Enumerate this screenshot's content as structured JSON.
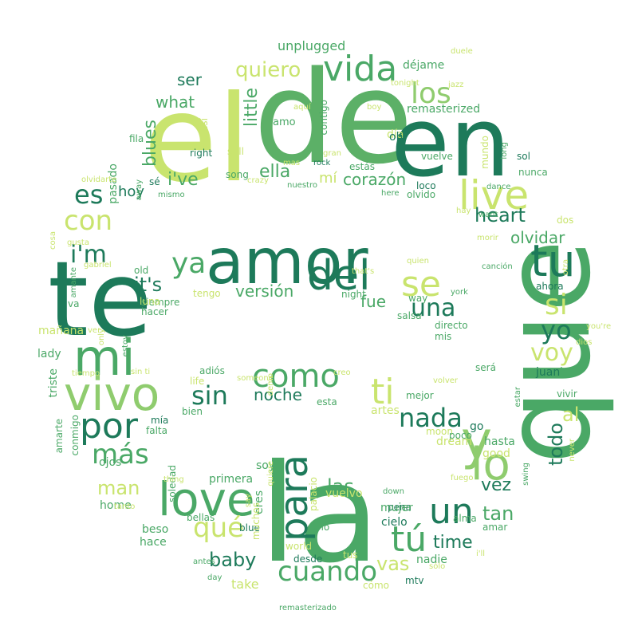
{
  "palette": {
    "dark_green": "#1d7a5a",
    "mid_green": "#4aa866",
    "light_green": "#8fcc6e",
    "yellow_green": "#c9e46e",
    "pale_yellow": "#e8f08c"
  },
  "words": [
    {
      "text": "el",
      "color": "#c9e46e"
    },
    {
      "text": "de",
      "color": "#5cb067"
    },
    {
      "text": "en",
      "color": "#1d7a5a"
    },
    {
      "text": "te",
      "color": "#1d7a5a"
    },
    {
      "text": "amor",
      "color": "#1d7a5a"
    },
    {
      "text": "que",
      "color": "#4aa866"
    },
    {
      "text": "la",
      "color": "#4aa866"
    },
    {
      "text": "mi",
      "color": "#4aa866"
    },
    {
      "text": "vivo",
      "color": "#8fcc6e"
    },
    {
      "text": "live",
      "color": "#c9e46e"
    },
    {
      "text": "tu",
      "color": "#1d7a5a"
    },
    {
      "text": "del",
      "color": "#1d7a5a"
    },
    {
      "text": "se",
      "color": "#c9e46e"
    },
    {
      "text": "vida",
      "color": "#4aa866"
    },
    {
      "text": "los",
      "color": "#8fcc6e"
    },
    {
      "text": "quiero",
      "color": "#c9e46e"
    },
    {
      "text": "ser",
      "color": "#1d7a5a"
    },
    {
      "text": "what",
      "color": "#4aa866"
    },
    {
      "text": "little",
      "color": "#4aa866"
    },
    {
      "text": "blues",
      "color": "#4aa866"
    },
    {
      "text": "i've",
      "color": "#4aa866"
    },
    {
      "text": "ella",
      "color": "#4aa866"
    },
    {
      "text": "mí",
      "color": "#c9e46e"
    },
    {
      "text": "corazón",
      "color": "#4aa866"
    },
    {
      "text": "es",
      "color": "#1d7a5a"
    },
    {
      "text": "hoy",
      "color": "#1d7a5a"
    },
    {
      "text": "con",
      "color": "#c9e46e"
    },
    {
      "text": "i'm",
      "color": "#1d7a5a"
    },
    {
      "text": "ya",
      "color": "#4aa866"
    },
    {
      "text": "it's",
      "color": "#1d7a5a"
    },
    {
      "text": "versión",
      "color": "#4aa866"
    },
    {
      "text": "heart",
      "color": "#1d7a5a"
    },
    {
      "text": "olvidar",
      "color": "#4aa866"
    },
    {
      "text": "si",
      "color": "#c9e46e"
    },
    {
      "text": "una",
      "color": "#1d7a5a"
    },
    {
      "text": "fue",
      "color": "#4aa866"
    },
    {
      "text": "yo",
      "color": "#1d7a5a"
    },
    {
      "text": "voy",
      "color": "#c9e46e"
    },
    {
      "text": "como",
      "color": "#4aa866"
    },
    {
      "text": "sin",
      "color": "#1d7a5a"
    },
    {
      "text": "noche",
      "color": "#1d7a5a"
    },
    {
      "text": "ti",
      "color": "#c9e46e"
    },
    {
      "text": "nada",
      "color": "#1d7a5a"
    },
    {
      "text": "por",
      "color": "#1d7a5a"
    },
    {
      "text": "más",
      "color": "#4aa866"
    },
    {
      "text": "love",
      "color": "#4aa866"
    },
    {
      "text": "man",
      "color": "#c9e46e"
    },
    {
      "text": "qué",
      "color": "#c9e46e"
    },
    {
      "text": "para",
      "color": "#1d7a5a"
    },
    {
      "text": "las",
      "color": "#4aa866"
    },
    {
      "text": "un",
      "color": "#1d7a5a"
    },
    {
      "text": "tú",
      "color": "#4aa866"
    },
    {
      "text": "tan",
      "color": "#4aa866"
    },
    {
      "text": "time",
      "color": "#1d7a5a"
    },
    {
      "text": "vas",
      "color": "#c9e46e"
    },
    {
      "text": "cuando",
      "color": "#4aa866"
    },
    {
      "text": "baby",
      "color": "#1d7a5a"
    },
    {
      "text": "lo",
      "color": "#8fcc6e"
    },
    {
      "text": "y",
      "color": "#8fcc6e"
    },
    {
      "text": "todo",
      "color": "#1d7a5a"
    },
    {
      "text": "al",
      "color": "#c9e46e"
    },
    {
      "text": "vez",
      "color": "#1d7a5a"
    },
    {
      "text": "unplugged",
      "color": "#4aa866"
    },
    {
      "text": "déjame",
      "color": "#4aa866"
    },
    {
      "text": "remasterized",
      "color": "#4aa866"
    },
    {
      "text": "amo",
      "color": "#4aa866"
    },
    {
      "text": "contigo",
      "color": "#4aa866"
    },
    {
      "text": "día",
      "color": "#c9e46e"
    },
    {
      "text": "oh",
      "color": "#1d7a5a"
    },
    {
      "text": "vuelve",
      "color": "#4aa866"
    },
    {
      "text": "mundo",
      "color": "#c9e46e"
    },
    {
      "text": "sol",
      "color": "#1d7a5a"
    },
    {
      "text": "nunca",
      "color": "#4aa866"
    },
    {
      "text": "estás",
      "color": "#4aa866"
    },
    {
      "text": "loco",
      "color": "#1d7a5a"
    },
    {
      "text": "olvido",
      "color": "#4aa866"
    },
    {
      "text": "right",
      "color": "#1d7a5a"
    },
    {
      "text": "still",
      "color": "#c9e46e"
    },
    {
      "text": "song",
      "color": "#4aa866"
    },
    {
      "text": "pasado",
      "color": "#4aa866"
    },
    {
      "text": "fila",
      "color": "#4aa866"
    },
    {
      "text": "así",
      "color": "#c9e46e"
    },
    {
      "text": "sé",
      "color": "#1d7a5a"
    },
    {
      "text": "dos",
      "color": "#c9e46e"
    },
    {
      "text": "ahora",
      "color": "#1d7a5a"
    },
    {
      "text": "old",
      "color": "#4aa866"
    },
    {
      "text": "tengo",
      "color": "#c9e46e"
    },
    {
      "text": "siempre",
      "color": "#4aa866"
    },
    {
      "text": "hacer",
      "color": "#4aa866"
    },
    {
      "text": "luna",
      "color": "#c9e46e"
    },
    {
      "text": "va",
      "color": "#4aa866"
    },
    {
      "text": "night",
      "color": "#4aa866"
    },
    {
      "text": "way",
      "color": "#4aa866"
    },
    {
      "text": "salsa",
      "color": "#4aa866"
    },
    {
      "text": "directo",
      "color": "#4aa866"
    },
    {
      "text": "mis",
      "color": "#4aa866"
    },
    {
      "text": "mañana",
      "color": "#c9e46e"
    },
    {
      "text": "lady",
      "color": "#4aa866"
    },
    {
      "text": "triste",
      "color": "#4aa866"
    },
    {
      "text": "adiós",
      "color": "#4aa866"
    },
    {
      "text": "life",
      "color": "#c9e46e"
    },
    {
      "text": "será",
      "color": "#4aa866"
    },
    {
      "text": "juan",
      "color": "#1d7a5a"
    },
    {
      "text": "let",
      "color": "#4aa866"
    },
    {
      "text": "vivir",
      "color": "#4aa866"
    },
    {
      "text": "esta",
      "color": "#4aa866"
    },
    {
      "text": "mejor",
      "color": "#4aa866"
    },
    {
      "text": "artes",
      "color": "#c9e46e"
    },
    {
      "text": "moon",
      "color": "#c9e46e"
    },
    {
      "text": "go",
      "color": "#1d7a5a"
    },
    {
      "text": "poco",
      "color": "#4aa866"
    },
    {
      "text": "dream",
      "color": "#c9e46e"
    },
    {
      "text": "hasta",
      "color": "#4aa866"
    },
    {
      "text": "good",
      "color": "#c9e46e"
    },
    {
      "text": "mía",
      "color": "#1d7a5a"
    },
    {
      "text": "bien",
      "color": "#4aa866"
    },
    {
      "text": "falta",
      "color": "#4aa866"
    },
    {
      "text": "conmigo",
      "color": "#4aa866"
    },
    {
      "text": "amarte",
      "color": "#4aa866"
    },
    {
      "text": "ojos",
      "color": "#4aa866"
    },
    {
      "text": "soledad",
      "color": "#4aa866"
    },
    {
      "text": "soy",
      "color": "#4aa866"
    },
    {
      "text": "primera",
      "color": "#4aa866"
    },
    {
      "text": "palacio",
      "color": "#c9e46e"
    },
    {
      "text": "pena",
      "color": "#1d7a5a"
    },
    {
      "text": "alma",
      "color": "#4aa866"
    },
    {
      "text": "home",
      "color": "#4aa866"
    },
    {
      "text": "bellas",
      "color": "#4aa866"
    },
    {
      "text": "eres",
      "color": "#4aa866"
    },
    {
      "text": "vuelvo",
      "color": "#c9e46e"
    },
    {
      "text": "mujer",
      "color": "#4aa866"
    },
    {
      "text": "cielo",
      "color": "#1d7a5a"
    },
    {
      "text": "amar",
      "color": "#4aa866"
    },
    {
      "text": "beso",
      "color": "#4aa866"
    },
    {
      "text": "blue",
      "color": "#1d7a5a"
    },
    {
      "text": "solo",
      "color": "#4aa866"
    },
    {
      "text": "hace",
      "color": "#4aa866"
    },
    {
      "text": "world",
      "color": "#c9e46e"
    },
    {
      "text": "desde",
      "color": "#1d7a5a"
    },
    {
      "text": "nadie",
      "color": "#4aa866"
    },
    {
      "text": "take",
      "color": "#c9e46e"
    },
    {
      "text": "mtv",
      "color": "#1d7a5a"
    },
    {
      "text": "cómo",
      "color": "#c9e46e"
    },
    {
      "text": "muchos",
      "color": "#c9e46e"
    },
    {
      "text": "tus",
      "color": "#c9e46e"
    },
    {
      "text": "sólo",
      "color": "#c9e46e"
    },
    {
      "text": "antes",
      "color": "#4aa866"
    },
    {
      "text": "day",
      "color": "#4aa866"
    },
    {
      "text": "remasterizado",
      "color": "#4aa866"
    },
    {
      "text": "rock",
      "color": "#1d7a5a"
    },
    {
      "text": "gran",
      "color": "#c9e46e"
    },
    {
      "text": "crazy",
      "color": "#c9e46e"
    },
    {
      "text": "nuestro",
      "color": "#4aa866"
    },
    {
      "text": "here",
      "color": "#4aa866"
    },
    {
      "text": "dance",
      "color": "#4aa866"
    },
    {
      "text": "want",
      "color": "#4aa866"
    },
    {
      "text": "hay",
      "color": "#c9e46e"
    },
    {
      "text": "morir",
      "color": "#c9e46e"
    },
    {
      "text": "canción",
      "color": "#4aa866"
    },
    {
      "text": "long",
      "color": "#4aa866"
    },
    {
      "text": "jazz",
      "color": "#c9e46e"
    },
    {
      "text": "tonight",
      "color": "#c9e46e"
    },
    {
      "text": "boy",
      "color": "#c9e46e"
    },
    {
      "text": "aquí",
      "color": "#c9e46e"
    },
    {
      "text": "duele",
      "color": "#c9e46e"
    },
    {
      "text": "mas",
      "color": "#c9e46e"
    },
    {
      "text": "away",
      "color": "#4aa866"
    },
    {
      "text": "olvidarte",
      "color": "#c9e46e"
    },
    {
      "text": "mismo",
      "color": "#4aa866"
    },
    {
      "text": "cosa",
      "color": "#c9e46e"
    },
    {
      "text": "gusta",
      "color": "#c9e46e"
    },
    {
      "text": "amante",
      "color": "#4aa866"
    },
    {
      "text": "gabriel",
      "color": "#c9e46e"
    },
    {
      "text": "that's",
      "color": "#c9e46e"
    },
    {
      "text": "quien",
      "color": "#c9e46e"
    },
    {
      "text": "york",
      "color": "#4aa866"
    },
    {
      "text": "otra",
      "color": "#c9e46e"
    },
    {
      "text": "you're",
      "color": "#c9e46e"
    },
    {
      "text": "dios",
      "color": "#c9e46e"
    },
    {
      "text": "ver",
      "color": "#c9e46e"
    },
    {
      "text": "only",
      "color": "#c9e46e"
    },
    {
      "text": "estoy",
      "color": "#4aa866"
    },
    {
      "text": "tiempo",
      "color": "#c9e46e"
    },
    {
      "text": "sin ti",
      "color": "#c9e46e"
    },
    {
      "text": "someone",
      "color": "#c9e46e"
    },
    {
      "text": "demo",
      "color": "#c9e46e"
    },
    {
      "text": "creo",
      "color": "#c9e46e"
    },
    {
      "text": "volver",
      "color": "#c9e46e"
    },
    {
      "text": "estar",
      "color": "#4aa866"
    },
    {
      "text": "never",
      "color": "#c9e46e"
    },
    {
      "text": "swing",
      "color": "#4aa866"
    },
    {
      "text": "fuego",
      "color": "#c9e46e"
    },
    {
      "text": "i'll",
      "color": "#c9e46e"
    },
    {
      "text": "down",
      "color": "#4aa866"
    },
    {
      "text": "thing",
      "color": "#c9e46e"
    },
    {
      "text": "tanto",
      "color": "#c9e46e"
    },
    {
      "text": "say",
      "color": "#c9e46e"
    },
    {
      "text": "quiere",
      "color": "#c9e46e"
    },
    {
      "text": "ganas",
      "color": "#c9e46e"
    }
  ]
}
